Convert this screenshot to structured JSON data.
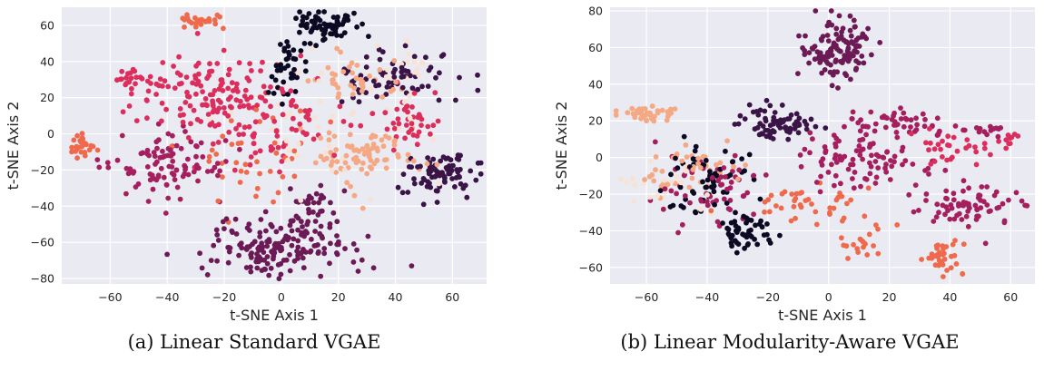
{
  "figure": {
    "captions": [
      "(a) Linear Standard VGAE",
      "(b) Linear Modularity-Aware VGAE"
    ]
  },
  "palette": [
    "#0c0a22",
    "#3a1447",
    "#6b1a55",
    "#a51f5e",
    "#dc2e5c",
    "#ef6a4c",
    "#f4a884",
    "#f8e2d4"
  ],
  "background": "#eaeaf2",
  "chart_data": [
    {
      "type": "scatter",
      "title": "",
      "xlabel": "t-SNE Axis 1",
      "ylabel": "t-SNE Axis 2",
      "xlim": [
        -77,
        72
      ],
      "ylim": [
        -83,
        70
      ],
      "xticks": [
        -60,
        -40,
        -20,
        0,
        20,
        40,
        60
      ],
      "yticks": [
        -80,
        -60,
        -40,
        -20,
        0,
        20,
        40,
        60
      ],
      "grid": true,
      "clusters": [
        {
          "x": 15,
          "y": 60,
          "spread": [
            5,
            4
          ],
          "n": 70,
          "color": 0
        },
        {
          "x": 3,
          "y": 35,
          "spread": [
            3,
            9
          ],
          "n": 40,
          "color": 0
        },
        {
          "x": 55,
          "y": -22,
          "spread": [
            7,
            6
          ],
          "n": 80,
          "color": 1
        },
        {
          "x": 38,
          "y": 30,
          "spread": [
            10,
            8
          ],
          "n": 70,
          "color": 1
        },
        {
          "x": 2,
          "y": -62,
          "spread": [
            14,
            8
          ],
          "n": 170,
          "color": 2
        },
        {
          "x": 12,
          "y": -40,
          "spread": [
            6,
            6
          ],
          "n": 30,
          "color": 2
        },
        {
          "x": -40,
          "y": -18,
          "spread": [
            10,
            10
          ],
          "n": 100,
          "color": 3
        },
        {
          "x": -10,
          "y": 10,
          "spread": [
            14,
            14
          ],
          "n": 120,
          "color": 4
        },
        {
          "x": -30,
          "y": 25,
          "spread": [
            14,
            10
          ],
          "n": 80,
          "color": 4
        },
        {
          "x": -50,
          "y": 30,
          "spread": [
            4,
            3
          ],
          "n": 15,
          "color": 4
        },
        {
          "x": 45,
          "y": 8,
          "spread": [
            6,
            8
          ],
          "n": 40,
          "color": 4
        },
        {
          "x": -70,
          "y": -7,
          "spread": [
            3,
            3
          ],
          "n": 25,
          "color": 5
        },
        {
          "x": -27,
          "y": 62,
          "spread": [
            5,
            2
          ],
          "n": 25,
          "color": 5
        },
        {
          "x": -10,
          "y": -15,
          "spread": [
            10,
            16
          ],
          "n": 40,
          "color": 5
        },
        {
          "x": 30,
          "y": -12,
          "spread": [
            9,
            9
          ],
          "n": 80,
          "color": 6
        },
        {
          "x": 25,
          "y": 30,
          "spread": [
            8,
            7
          ],
          "n": 40,
          "color": 6
        },
        {
          "x": 45,
          "y": 35,
          "spread": [
            5,
            8
          ],
          "n": 20,
          "color": 7
        },
        {
          "x": 10,
          "y": 5,
          "spread": [
            20,
            20
          ],
          "n": 40,
          "color": 7
        }
      ]
    },
    {
      "type": "scatter",
      "title": "",
      "xlabel": "t-SNE Axis 1",
      "ylabel": "t-SNE Axis 2",
      "xlim": [
        -72,
        68
      ],
      "ylim": [
        -69,
        82
      ],
      "xticks": [
        -60,
        -40,
        -20,
        0,
        20,
        40,
        60
      ],
      "yticks": [
        -60,
        -40,
        -20,
        0,
        20,
        40,
        60,
        80
      ],
      "grid": true,
      "clusters": [
        {
          "x": -27,
          "y": -40,
          "spread": [
            4,
            5
          ],
          "n": 50,
          "color": 0
        },
        {
          "x": -40,
          "y": -15,
          "spread": [
            8,
            10
          ],
          "n": 60,
          "color": 0
        },
        {
          "x": -16,
          "y": 18,
          "spread": [
            6,
            5
          ],
          "n": 70,
          "color": 1
        },
        {
          "x": 3,
          "y": 60,
          "spread": [
            6,
            9
          ],
          "n": 120,
          "color": 2
        },
        {
          "x": -40,
          "y": -15,
          "spread": [
            10,
            10
          ],
          "n": 60,
          "color": 3
        },
        {
          "x": 22,
          "y": 18,
          "spread": [
            8,
            4
          ],
          "n": 50,
          "color": 3
        },
        {
          "x": 10,
          "y": 0,
          "spread": [
            10,
            8
          ],
          "n": 90,
          "color": 3
        },
        {
          "x": 45,
          "y": -27,
          "spread": [
            9,
            6
          ],
          "n": 70,
          "color": 3
        },
        {
          "x": 52,
          "y": 15,
          "spread": [
            5,
            2
          ],
          "n": 15,
          "color": 3
        },
        {
          "x": 60,
          "y": 10,
          "spread": [
            2,
            2
          ],
          "n": 10,
          "color": 4
        },
        {
          "x": 40,
          "y": 5,
          "spread": [
            6,
            5
          ],
          "n": 30,
          "color": 4
        },
        {
          "x": -10,
          "y": -25,
          "spread": [
            10,
            6
          ],
          "n": 40,
          "color": 5
        },
        {
          "x": 39,
          "y": -56,
          "spread": [
            3,
            5
          ],
          "n": 35,
          "color": 5
        },
        {
          "x": 10,
          "y": -45,
          "spread": [
            4,
            6
          ],
          "n": 20,
          "color": 5
        },
        {
          "x": -60,
          "y": 24,
          "spread": [
            5,
            2
          ],
          "n": 40,
          "color": 6
        },
        {
          "x": -45,
          "y": -8,
          "spread": [
            8,
            6
          ],
          "n": 40,
          "color": 6
        },
        {
          "x": -50,
          "y": -18,
          "spread": [
            8,
            6
          ],
          "n": 25,
          "color": 7
        }
      ]
    }
  ]
}
